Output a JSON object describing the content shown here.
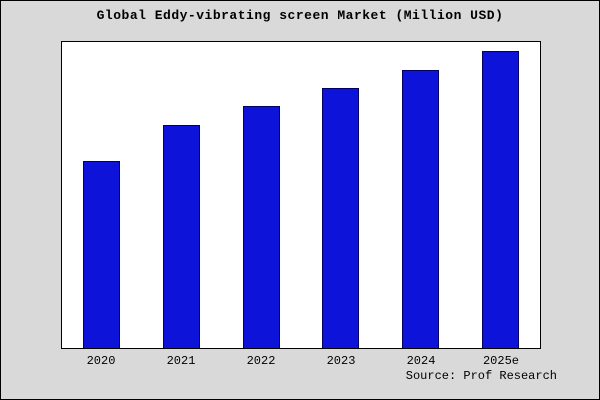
{
  "title": "Global Eddy-vibrating screen Market (Million USD)",
  "source": "Source: Prof Research",
  "colors": {
    "bar": "#0d13d8",
    "bar_border": "#000066",
    "page_background": "#d9d9d9",
    "plot_background": "#ffffff",
    "frame_border": "#000000"
  },
  "chart_data": {
    "type": "bar",
    "title": "Global Eddy-vibrating screen Market (Million USD)",
    "categories": [
      "2020",
      "2021",
      "2022",
      "2023",
      "2024",
      "2025e"
    ],
    "values": [
      61,
      73,
      79,
      85,
      91,
      97
    ],
    "xlabel": "",
    "ylabel": "",
    "ylim": [
      0,
      100
    ],
    "grid": false,
    "legend": false,
    "y_axis_ticks_visible": false,
    "bar_color": "#0d13d8"
  }
}
